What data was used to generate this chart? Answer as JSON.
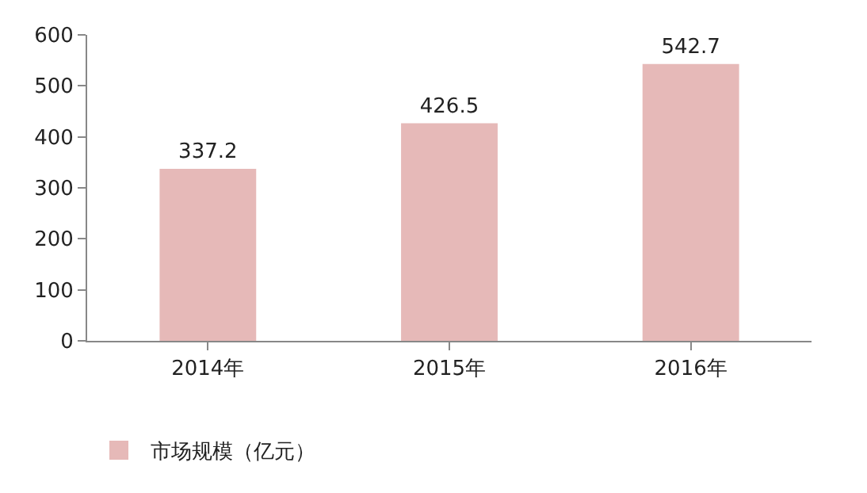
{
  "chart_data": {
    "type": "bar",
    "categories": [
      "2014年",
      "2015年",
      "2016年"
    ],
    "series": [
      {
        "name": "市场规模（亿元）",
        "color": "#e6b9b8",
        "values": [
          337.2,
          426.5,
          542.7
        ]
      }
    ],
    "ylim": [
      0,
      600
    ],
    "yticks": [
      0,
      100,
      200,
      300,
      400,
      500,
      600
    ],
    "grid": false,
    "legend": "bottom left",
    "data_labels": true
  }
}
